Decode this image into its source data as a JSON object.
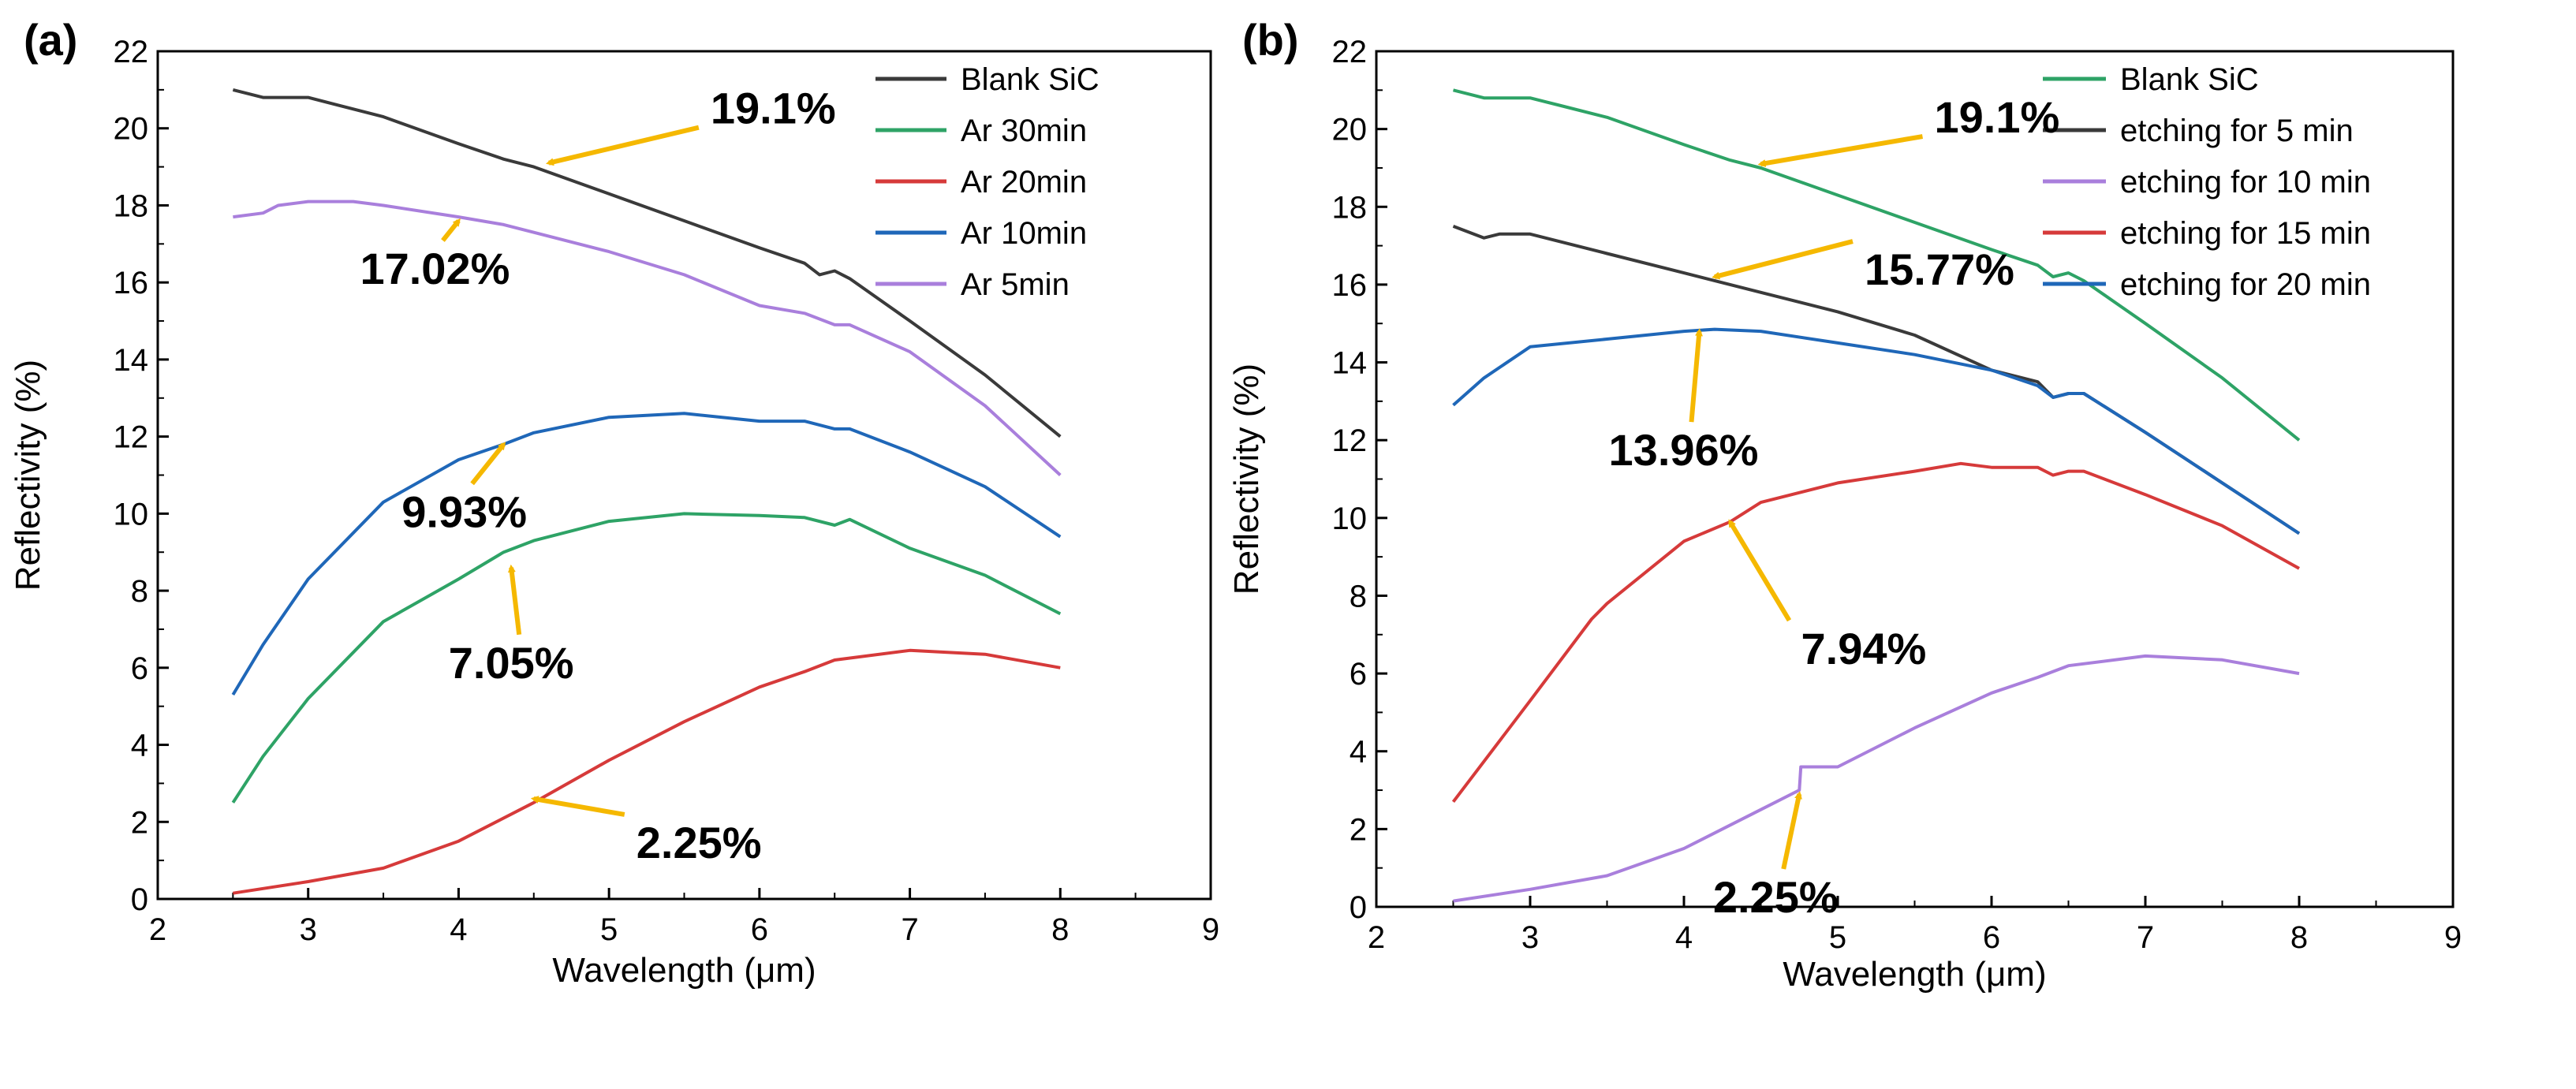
{
  "chart_data": [
    {
      "type": "line",
      "panel_label": "(a)",
      "xlabel": "Wavelength (μm)",
      "ylabel": "Reflectivity (%)",
      "xlim": [
        2,
        9
      ],
      "ylim": [
        0,
        22
      ],
      "x_ticks": [
        "2",
        "3",
        "4",
        "5",
        "6",
        "7",
        "8",
        "9"
      ],
      "y_ticks": [
        "0",
        "2",
        "4",
        "6",
        "8",
        "10",
        "12",
        "14",
        "16",
        "18",
        "20",
        "22"
      ],
      "legend_position": "top-right",
      "series": [
        {
          "name": "Blank SiC",
          "color": "#3a3a3a",
          "x": [
            2.5,
            2.7,
            2.9,
            3.0,
            3.2,
            3.5,
            4.0,
            4.3,
            4.5,
            5.0,
            5.5,
            6.0,
            6.3,
            6.4,
            6.5,
            6.6,
            7.0,
            7.5,
            8.0
          ],
          "y": [
            21.0,
            20.8,
            20.8,
            20.8,
            20.6,
            20.3,
            19.6,
            19.2,
            19.0,
            18.3,
            17.6,
            16.9,
            16.5,
            16.2,
            16.3,
            16.1,
            15.0,
            13.6,
            12.0
          ]
        },
        {
          "name": "Ar 30min",
          "color": "#2ea366",
          "x": [
            2.5,
            2.7,
            3.0,
            3.5,
            4.0,
            4.3,
            4.5,
            5.0,
            5.5,
            6.0,
            6.3,
            6.5,
            6.6,
            7.0,
            7.5,
            8.0
          ],
          "y": [
            2.5,
            3.7,
            5.2,
            7.2,
            8.3,
            9.0,
            9.3,
            9.8,
            10.0,
            9.95,
            9.9,
            9.7,
            9.85,
            9.1,
            8.4,
            7.4
          ]
        },
        {
          "name": "Ar 20min",
          "color": "#d63a3a",
          "x": [
            2.5,
            3.0,
            3.5,
            4.0,
            4.5,
            5.0,
            5.5,
            6.0,
            6.3,
            6.5,
            7.0,
            7.5,
            8.0
          ],
          "y": [
            0.15,
            0.45,
            0.8,
            1.5,
            2.5,
            3.6,
            4.6,
            5.5,
            5.9,
            6.2,
            6.45,
            6.35,
            6.0
          ]
        },
        {
          "name": "Ar 10min",
          "color": "#1f67b8",
          "x": [
            2.5,
            2.7,
            3.0,
            3.5,
            4.0,
            4.3,
            4.5,
            5.0,
            5.5,
            6.0,
            6.3,
            6.5,
            6.6,
            7.0,
            7.5,
            8.0
          ],
          "y": [
            5.3,
            6.6,
            8.3,
            10.3,
            11.4,
            11.8,
            12.1,
            12.5,
            12.6,
            12.4,
            12.4,
            12.2,
            12.2,
            11.6,
            10.7,
            9.4
          ]
        },
        {
          "name": "Ar 5min",
          "color": "#a97fdc",
          "x": [
            2.5,
            2.7,
            2.8,
            3.0,
            3.3,
            3.5,
            4.0,
            4.3,
            4.5,
            5.0,
            5.5,
            6.0,
            6.3,
            6.5,
            6.6,
            7.0,
            7.5,
            8.0
          ],
          "y": [
            17.7,
            17.8,
            18.0,
            18.1,
            18.1,
            18.0,
            17.7,
            17.5,
            17.3,
            16.8,
            16.2,
            15.4,
            15.2,
            14.9,
            14.9,
            14.2,
            12.8,
            11.0
          ]
        }
      ],
      "annotations": [
        {
          "text": "19.1%",
          "x": 4.6,
          "y": 19.1
        },
        {
          "text": "17.02%",
          "x": 4.0,
          "y": 17.6
        },
        {
          "text": "9.93%",
          "x": 4.3,
          "y": 11.8
        },
        {
          "text": "7.05%",
          "x": 4.35,
          "y": 8.6
        },
        {
          "text": "2.25%",
          "x": 4.5,
          "y": 2.6
        }
      ]
    },
    {
      "type": "line",
      "panel_label": "(b)",
      "xlabel": "Wavelength (μm)",
      "ylabel": "Reflectivity (%)",
      "xlim": [
        2,
        9
      ],
      "ylim": [
        0,
        22
      ],
      "x_ticks": [
        "2",
        "3",
        "4",
        "5",
        "6",
        "7",
        "8",
        "9"
      ],
      "y_ticks": [
        "0",
        "2",
        "4",
        "6",
        "8",
        "10",
        "12",
        "14",
        "16",
        "18",
        "20",
        "22"
      ],
      "legend_position": "top-right",
      "series": [
        {
          "name": "Blank SiC",
          "color": "#2ea366",
          "x": [
            2.5,
            2.7,
            2.9,
            3.0,
            3.2,
            3.5,
            4.0,
            4.3,
            4.5,
            5.0,
            5.5,
            6.0,
            6.3,
            6.4,
            6.5,
            6.6,
            7.0,
            7.5,
            8.0
          ],
          "y": [
            21.0,
            20.8,
            20.8,
            20.8,
            20.6,
            20.3,
            19.6,
            19.2,
            19.0,
            18.3,
            17.6,
            16.9,
            16.5,
            16.2,
            16.3,
            16.1,
            15.0,
            13.6,
            12.0
          ]
        },
        {
          "name": "etching for 5  min",
          "color": "#3a3a3a",
          "x": [
            2.5,
            2.7,
            2.8,
            3.0,
            3.5,
            4.0,
            4.3,
            4.5,
            5.0,
            5.5,
            6.0,
            6.3,
            6.4,
            6.5,
            6.6,
            7.0,
            7.5,
            8.0
          ],
          "y": [
            17.5,
            17.2,
            17.3,
            17.3,
            16.8,
            16.3,
            16.0,
            15.8,
            15.3,
            14.7,
            13.8,
            13.5,
            13.1,
            13.2,
            13.2,
            12.2,
            10.9,
            9.6
          ]
        },
        {
          "name": "etching for 10 min",
          "color": "#a97fdc",
          "x": [
            2.5,
            3.0,
            3.5,
            4.0,
            4.5,
            4.75,
            4.76,
            5.0,
            5.5,
            6.0,
            6.3,
            6.5,
            7.0,
            7.5,
            8.0
          ],
          "y": [
            0.15,
            0.45,
            0.8,
            1.5,
            2.5,
            3.0,
            3.6,
            3.6,
            4.6,
            5.5,
            5.9,
            6.2,
            6.45,
            6.35,
            6.0
          ]
        },
        {
          "name": "etching for 15 min",
          "color": "#d63a3a",
          "x": [
            2.5,
            3.0,
            3.4,
            3.5,
            4.0,
            4.3,
            4.5,
            5.0,
            5.5,
            5.8,
            6.0,
            6.3,
            6.4,
            6.5,
            6.6,
            7.0,
            7.5,
            8.0
          ],
          "y": [
            2.7,
            5.3,
            7.4,
            7.8,
            9.4,
            9.9,
            10.4,
            10.9,
            11.2,
            11.4,
            11.3,
            11.3,
            11.1,
            11.2,
            11.2,
            10.6,
            9.8,
            8.7
          ]
        },
        {
          "name": "etching for 20 min",
          "color": "#1f67b8",
          "x": [
            2.5,
            2.7,
            3.0,
            3.5,
            4.0,
            4.2,
            4.5,
            5.0,
            5.5,
            6.0,
            6.3,
            6.4,
            6.5,
            6.6,
            7.0,
            7.5,
            8.0
          ],
          "y": [
            12.9,
            13.6,
            14.4,
            14.6,
            14.8,
            14.85,
            14.8,
            14.5,
            14.2,
            13.8,
            13.4,
            13.1,
            13.2,
            13.2,
            12.2,
            10.9,
            9.6
          ]
        }
      ],
      "annotations": [
        {
          "text": "19.1%",
          "x": 4.5,
          "y": 19.1
        },
        {
          "text": "15.77%",
          "x": 4.2,
          "y": 16.2
        },
        {
          "text": "13.96%",
          "x": 4.1,
          "y": 14.8
        },
        {
          "text": "7.94%",
          "x": 4.3,
          "y": 9.9
        },
        {
          "text": "2.25%",
          "x": 4.75,
          "y": 2.9
        }
      ]
    }
  ]
}
